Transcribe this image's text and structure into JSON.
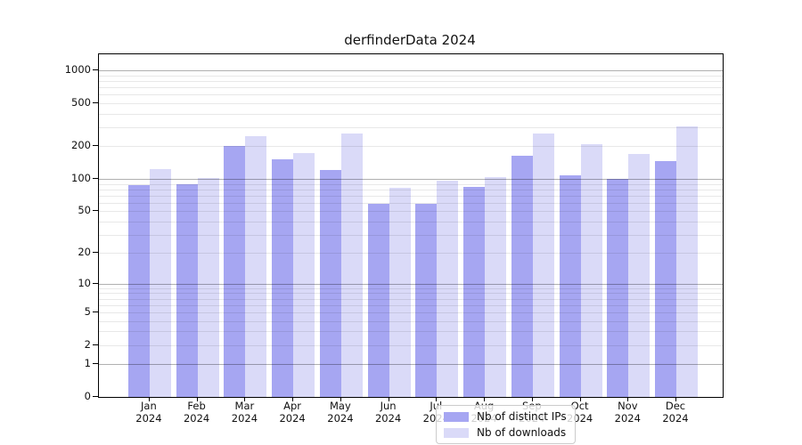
{
  "figure": {
    "title": "derfinderData 2024",
    "background": "#ffffff"
  },
  "chart_data": {
    "type": "bar",
    "title": "derfinderData 2024",
    "categories": [
      "Jan",
      "Feb",
      "Mar",
      "Apr",
      "May",
      "Jun",
      "Jul",
      "Aug",
      "Sep",
      "Oct",
      "Nov",
      "Dec"
    ],
    "category_year_line": "2024",
    "series": [
      {
        "name": "Nb of distinct IPs",
        "color": "#a6a6f2",
        "values": [
          87,
          90,
          200,
          152,
          120,
          59,
          59,
          85,
          163,
          107,
          100,
          147
        ]
      },
      {
        "name": "Nb of downloads",
        "color": "#dadaf8",
        "values": [
          124,
          102,
          248,
          172,
          262,
          82,
          96,
          103,
          263,
          210,
          170,
          305
        ]
      }
    ],
    "xlabel": "",
    "ylabel": "",
    "yscale": "pseudo-log (log1p)",
    "yticks": [
      0,
      1,
      2,
      5,
      10,
      20,
      50,
      100,
      200,
      500,
      1000
    ],
    "ytick_labels": [
      "0",
      "1",
      "2",
      "5",
      "10",
      "20",
      "50",
      "100",
      "200",
      "500",
      "1000"
    ],
    "ylim": [
      0,
      1412
    ],
    "grid": {
      "major_values": [
        1,
        10,
        100,
        1000
      ],
      "minor_values": [
        2,
        3,
        4,
        5,
        6,
        7,
        8,
        9,
        20,
        30,
        40,
        50,
        60,
        70,
        80,
        90,
        200,
        300,
        400,
        500,
        600,
        700,
        800,
        900
      ],
      "drawn_above_bars": true,
      "major_color": "#b0b0b0",
      "minor_color": "#e8e8e8"
    },
    "legend": {
      "position": "inside-bottom-center",
      "entries": [
        "Nb of distinct IPs",
        "Nb of downloads"
      ]
    },
    "colors": {
      "distinct_ips": "#a6a6f2",
      "downloads": "#dadaf8",
      "axis": "#000000",
      "text": "#111111"
    }
  }
}
